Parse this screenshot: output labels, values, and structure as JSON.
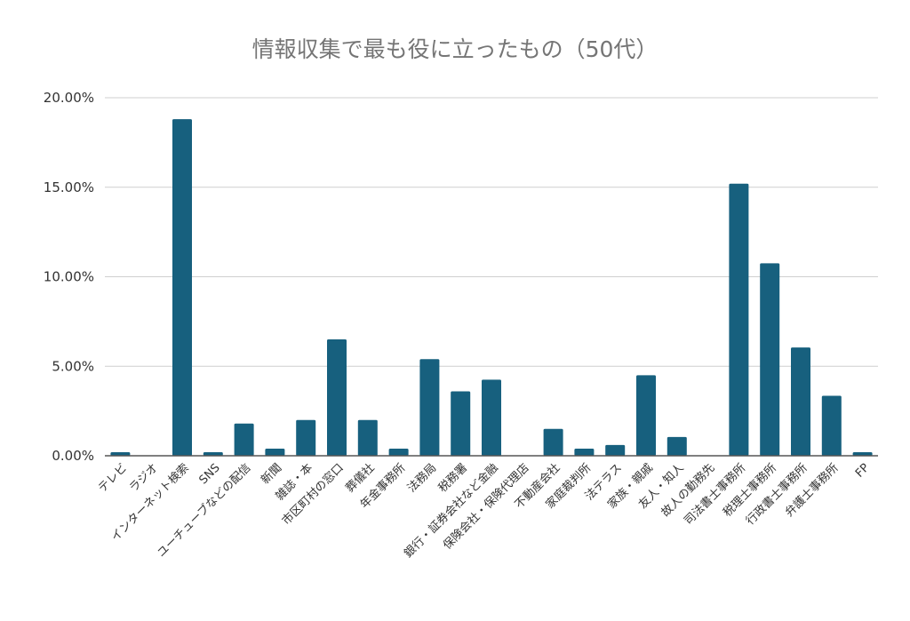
{
  "chart_data": {
    "type": "bar",
    "title": "情報収集で最も役に立ったもの（50代）",
    "xlabel": "",
    "ylabel": "",
    "ylim": [
      0,
      20
    ],
    "yticks": [
      "0.00%",
      "5.00%",
      "10.00%",
      "15.00%",
      "20.00%"
    ],
    "grid": true,
    "legend": "none",
    "bar_color": "#17607e",
    "categories": [
      "テレビ",
      "ラジオ",
      "インターネット検索",
      "SNS",
      "ユーチューブなどの配信",
      "新聞",
      "雑誌・本",
      "市区町村の窓口",
      "葬儀社",
      "年金事務所",
      "法務局",
      "税務署",
      "銀行・証券会社など金融",
      "保険会社・保険代理店",
      "不動産会社",
      "家庭裁判所",
      "法テラス",
      "家族・親戚",
      "友人・知人",
      "故人の勤務先",
      "司法書士事務所",
      "税理士事務所",
      "行政書士事務所",
      "弁護士事務所",
      "FP"
    ],
    "values": [
      0.2,
      0.0,
      18.8,
      0.2,
      1.8,
      0.4,
      2.0,
      6.5,
      2.0,
      0.4,
      5.4,
      3.6,
      4.25,
      0.0,
      1.5,
      0.4,
      0.6,
      4.5,
      1.05,
      0.0,
      15.2,
      10.75,
      6.05,
      3.35,
      0.2
    ]
  }
}
